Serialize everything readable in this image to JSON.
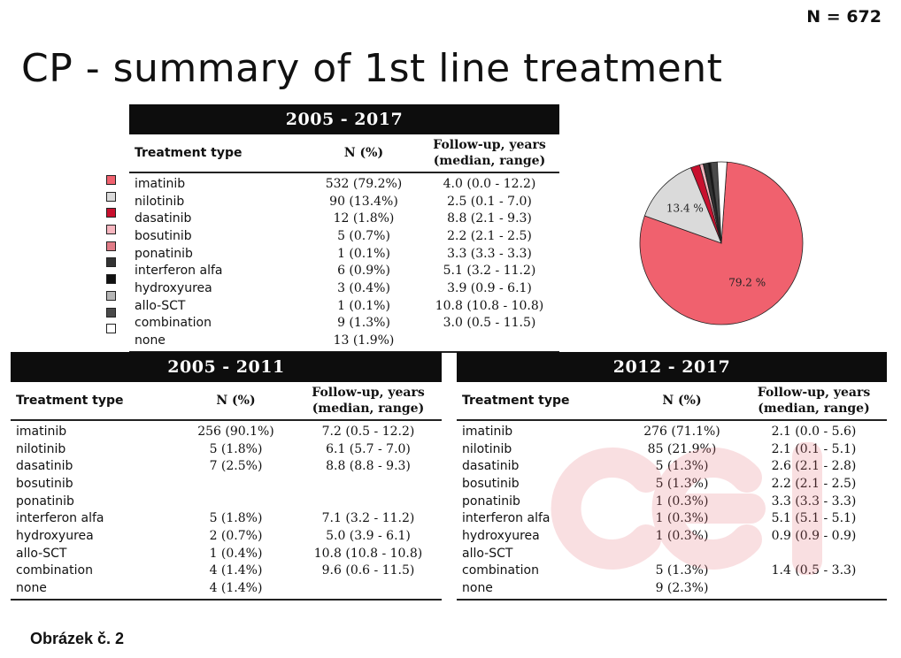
{
  "n_total": "N = 672",
  "title": "CP - summary of 1st line treatment",
  "footer_caption": "Obrázek č. 2",
  "overall": {
    "period": "2005 - 2017",
    "headers": [
      "Treatment type",
      "N (%)",
      "Follow-up, years\n(median, range)"
    ],
    "rows": [
      {
        "type": "imatinib",
        "n": "532 (79.2%)",
        "fu": "4.0 (0.0 - 12.2)",
        "color": "#f0616e"
      },
      {
        "type": "nilotinib",
        "n": "90 (13.4%)",
        "fu": "2.5 (0.1 - 7.0)",
        "color": "#dadada"
      },
      {
        "type": "dasatinib",
        "n": "12 (1.8%)",
        "fu": "8.8 (2.1 - 9.3)",
        "color": "#c8102e"
      },
      {
        "type": "bosutinib",
        "n": "5 (0.7%)",
        "fu": "2.2 (2.1 - 2.5)",
        "color": "#f7b6bf"
      },
      {
        "type": "ponatinib",
        "n": "1 (0.1%)",
        "fu": "3.3 (3.3 - 3.3)",
        "color": "#e07b86"
      },
      {
        "type": "interferon alfa",
        "n": "6 (0.9%)",
        "fu": "5.1 (3.2 - 11.2)",
        "color": "#333333"
      },
      {
        "type": "hydroxyurea",
        "n": "3 (0.4%)",
        "fu": "3.9 (0.9 - 6.1)",
        "color": "#111111"
      },
      {
        "type": "allo-SCT",
        "n": "1 (0.1%)",
        "fu": "10.8 (10.8 - 10.8)",
        "color": "#b5b5b5"
      },
      {
        "type": "combination",
        "n": "9 (1.3%)",
        "fu": "3.0 (0.5 - 11.5)",
        "color": "#4a4a4a"
      },
      {
        "type": "none",
        "n": "13 (1.9%)",
        "fu": "",
        "color": "#ffffff"
      }
    ]
  },
  "period_a": {
    "period": "2005 - 2011",
    "headers": [
      "Treatment type",
      "N (%)",
      "Follow-up, years\n(median, range)"
    ],
    "rows": [
      {
        "type": "imatinib",
        "n": "256 (90.1%)",
        "fu": "7.2 (0.5 - 12.2)"
      },
      {
        "type": "nilotinib",
        "n": "5 (1.8%)",
        "fu": "6.1 (5.7 - 7.0)"
      },
      {
        "type": "dasatinib",
        "n": "7 (2.5%)",
        "fu": "8.8 (8.8 - 9.3)"
      },
      {
        "type": "bosutinib",
        "n": "",
        "fu": ""
      },
      {
        "type": "ponatinib",
        "n": "",
        "fu": ""
      },
      {
        "type": "interferon alfa",
        "n": "5 (1.8%)",
        "fu": "7.1 (3.2 - 11.2)"
      },
      {
        "type": "hydroxyurea",
        "n": "2 (0.7%)",
        "fu": "5.0 (3.9 - 6.1)"
      },
      {
        "type": "allo-SCT",
        "n": "1 (0.4%)",
        "fu": "10.8 (10.8 - 10.8)"
      },
      {
        "type": "combination",
        "n": "4 (1.4%)",
        "fu": "9.6 (0.6 - 11.5)"
      },
      {
        "type": "none",
        "n": "4 (1.4%)",
        "fu": ""
      }
    ]
  },
  "period_b": {
    "period": "2012 - 2017",
    "headers": [
      "Treatment type",
      "N (%)",
      "Follow-up, years\n(median, range)"
    ],
    "rows": [
      {
        "type": "imatinib",
        "n": "276 (71.1%)",
        "fu": "2.1 (0.0 - 5.6)"
      },
      {
        "type": "nilotinib",
        "n": "85 (21.9%)",
        "fu": "2.1 (0.1 - 5.1)"
      },
      {
        "type": "dasatinib",
        "n": "5 (1.3%)",
        "fu": "2.6 (2.1 - 2.8)"
      },
      {
        "type": "bosutinib",
        "n": "5 (1.3%)",
        "fu": "2.2 (2.1 - 2.5)"
      },
      {
        "type": "ponatinib",
        "n": "1 (0.3%)",
        "fu": "3.3 (3.3 - 3.3)"
      },
      {
        "type": "interferon alfa",
        "n": "1 (0.3%)",
        "fu": "5.1 (5.1 - 5.1)"
      },
      {
        "type": "hydroxyurea",
        "n": "1 (0.3%)",
        "fu": "0.9 (0.9 - 0.9)"
      },
      {
        "type": "allo-SCT",
        "n": "",
        "fu": ""
      },
      {
        "type": "combination",
        "n": "5 (1.3%)",
        "fu": "1.4 (0.5 - 3.3)"
      },
      {
        "type": "none",
        "n": "9 (2.3%)",
        "fu": ""
      }
    ]
  },
  "chart_data": {
    "type": "pie",
    "slices": [
      {
        "label": "imatinib",
        "value": 79.2,
        "color": "#f0616e",
        "data_label": "79.2 %"
      },
      {
        "label": "nilotinib",
        "value": 13.4,
        "color": "#dadada",
        "data_label": "13.4 %"
      },
      {
        "label": "dasatinib",
        "value": 1.8,
        "color": "#c8102e",
        "data_label": ""
      },
      {
        "label": "bosutinib",
        "value": 0.7,
        "color": "#f7b6bf",
        "data_label": ""
      },
      {
        "label": "ponatinib",
        "value": 0.1,
        "color": "#e07b86",
        "data_label": ""
      },
      {
        "label": "interferon alfa",
        "value": 0.9,
        "color": "#333333",
        "data_label": ""
      },
      {
        "label": "hydroxyurea",
        "value": 0.4,
        "color": "#111111",
        "data_label": ""
      },
      {
        "label": "allo-SCT",
        "value": 0.1,
        "color": "#b5b5b5",
        "data_label": ""
      },
      {
        "label": "combination",
        "value": 1.3,
        "color": "#4a4a4a",
        "data_label": ""
      },
      {
        "label": "none",
        "value": 1.9,
        "color": "#ffffff",
        "data_label": ""
      }
    ]
  },
  "watermark_icon": "cel-logo-watermark"
}
